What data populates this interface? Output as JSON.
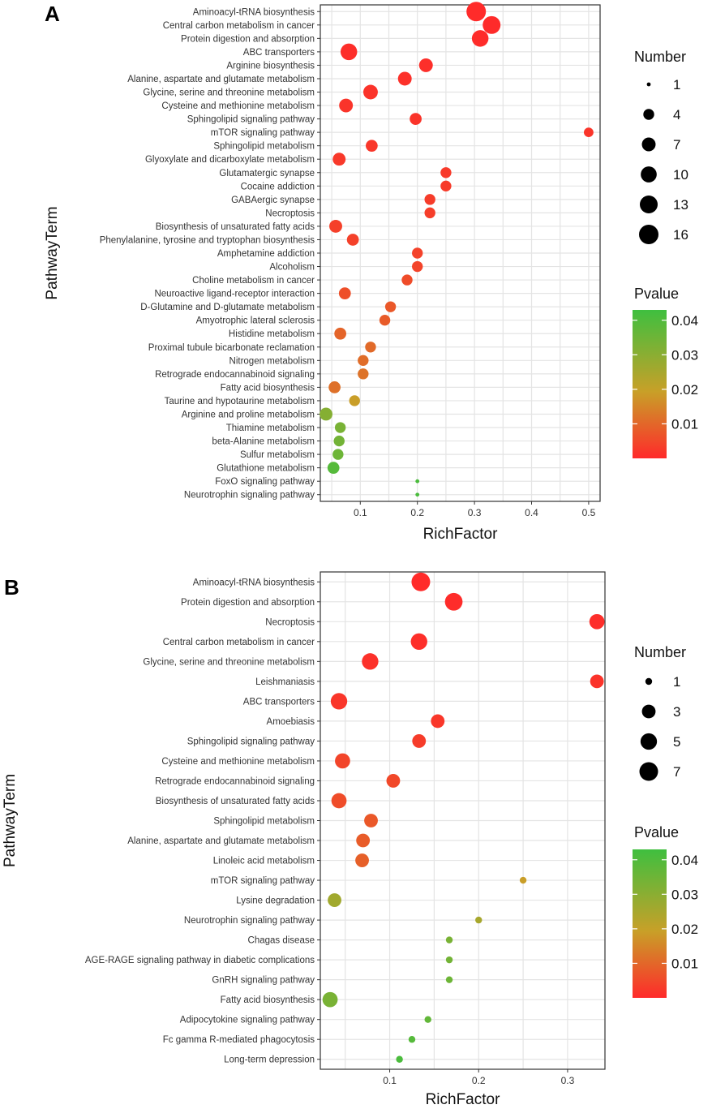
{
  "colors": {
    "low": "#ff2a2a",
    "mid": "#c8a028",
    "high": "#3fbf3f",
    "grid": "#e4e4e4",
    "panel_border": "#333333"
  },
  "chart_data": [
    {
      "type": "scatter",
      "panel": "A",
      "xlabel": "RichFactor",
      "ylabel": "PathwayTerm",
      "xlim": [
        0.03,
        0.52
      ],
      "xticks": [
        0.1,
        0.2,
        0.3,
        0.4,
        0.5
      ],
      "xtick_labels": [
        "0.1",
        "0.2",
        "0.3",
        "0.4",
        "0.5"
      ],
      "size_legend": {
        "title": "Number",
        "values": [
          1,
          4,
          7,
          10,
          13,
          16
        ],
        "labels": [
          "1",
          "4",
          "7",
          "10",
          "13",
          "16"
        ]
      },
      "color_legend": {
        "title": "Pvalue",
        "min": 0.0,
        "max": 0.043,
        "ticks": [
          0.01,
          0.02,
          0.03,
          0.04
        ],
        "labels": [
          "0.01",
          "0.02",
          "0.03",
          "0.04"
        ]
      },
      "points": [
        {
          "term": "Aminoacyl-tRNA biosynthesis",
          "x": 0.303,
          "count": 16,
          "p": 0.0001
        },
        {
          "term": "Central carbon metabolism in cancer",
          "x": 0.33,
          "count": 13,
          "p": 0.0002
        },
        {
          "term": "Protein digestion and absorption",
          "x": 0.31,
          "count": 11,
          "p": 0.0004
        },
        {
          "term": "ABC transporters",
          "x": 0.08,
          "count": 11,
          "p": 0.0006
        },
        {
          "term": "Arginine biosynthesis",
          "x": 0.215,
          "count": 7,
          "p": 0.0008
        },
        {
          "term": "Alanine, aspartate and glutamate metabolism",
          "x": 0.178,
          "count": 7,
          "p": 0.0012
        },
        {
          "term": "Glycine, serine and threonine metabolism",
          "x": 0.118,
          "count": 8,
          "p": 0.0015
        },
        {
          "term": "Cysteine and methionine metabolism",
          "x": 0.075,
          "count": 7,
          "p": 0.0016
        },
        {
          "term": "Sphingolipid signaling pathway",
          "x": 0.197,
          "count": 5,
          "p": 0.0017
        },
        {
          "term": "mTOR signaling pathway",
          "x": 0.5,
          "count": 3,
          "p": 0.0018
        },
        {
          "term": "Sphingolipid metabolism",
          "x": 0.12,
          "count": 5,
          "p": 0.0022
        },
        {
          "term": "Glyoxylate and dicarboxylate metabolism",
          "x": 0.063,
          "count": 6,
          "p": 0.0025
        },
        {
          "term": "Glutamatergic synapse",
          "x": 0.25,
          "count": 4,
          "p": 0.0026
        },
        {
          "term": "Cocaine addiction",
          "x": 0.25,
          "count": 4,
          "p": 0.0028
        },
        {
          "term": "GABAergic synapse",
          "x": 0.222,
          "count": 4,
          "p": 0.003
        },
        {
          "term": "Necroptosis",
          "x": 0.222,
          "count": 4,
          "p": 0.0032
        },
        {
          "term": "Biosynthesis of unsaturated fatty acids",
          "x": 0.057,
          "count": 6,
          "p": 0.0036
        },
        {
          "term": "Phenylalanine, tyrosine and tryptophan biosynthesis",
          "x": 0.087,
          "count": 5,
          "p": 0.0038
        },
        {
          "term": "Amphetamine addiction",
          "x": 0.2,
          "count": 4,
          "p": 0.004
        },
        {
          "term": "Alcoholism",
          "x": 0.2,
          "count": 4,
          "p": 0.0042
        },
        {
          "term": "Choline metabolism in cancer",
          "x": 0.182,
          "count": 4,
          "p": 0.0055
        },
        {
          "term": "Neuroactive ligand-receptor interaction",
          "x": 0.073,
          "count": 5,
          "p": 0.006
        },
        {
          "term": "D-Glutamine and D-glutamate metabolism",
          "x": 0.153,
          "count": 4,
          "p": 0.0075
        },
        {
          "term": "Amyotrophic lateral sclerosis",
          "x": 0.143,
          "count": 4,
          "p": 0.008
        },
        {
          "term": "Histidine metabolism",
          "x": 0.065,
          "count": 5,
          "p": 0.0095
        },
        {
          "term": "Proximal tubule bicarbonate reclamation",
          "x": 0.118,
          "count": 4,
          "p": 0.0105
        },
        {
          "term": "Nitrogen metabolism",
          "x": 0.105,
          "count": 4,
          "p": 0.011
        },
        {
          "term": "Retrograde endocannabinoid signaling",
          "x": 0.105,
          "count": 4,
          "p": 0.012
        },
        {
          "term": "Fatty acid biosynthesis",
          "x": 0.055,
          "count": 5,
          "p": 0.0115
        },
        {
          "term": "Taurine and hypotaurine metabolism",
          "x": 0.09,
          "count": 4,
          "p": 0.019
        },
        {
          "term": "Arginine and proline metabolism",
          "x": 0.04,
          "count": 6,
          "p": 0.031
        },
        {
          "term": "Thiamine metabolism",
          "x": 0.065,
          "count": 4,
          "p": 0.033
        },
        {
          "term": "beta-Alanine metabolism",
          "x": 0.063,
          "count": 4,
          "p": 0.034
        },
        {
          "term": "Sulfur metabolism",
          "x": 0.061,
          "count": 4,
          "p": 0.035
        },
        {
          "term": "Glutathione metabolism",
          "x": 0.053,
          "count": 5,
          "p": 0.039
        },
        {
          "term": "FoxO signaling pathway",
          "x": 0.2,
          "count": 1,
          "p": 0.041
        },
        {
          "term": "Neurotrophin signaling pathway",
          "x": 0.2,
          "count": 1,
          "p": 0.041
        }
      ]
    },
    {
      "type": "scatter",
      "panel": "B",
      "xlabel": "RichFactor",
      "ylabel": "PathwayTerm",
      "xlim": [
        0.022,
        0.342
      ],
      "xticks": [
        0.1,
        0.2,
        0.3
      ],
      "xtick_labels": [
        "0.1",
        "0.2",
        "0.3"
      ],
      "size_legend": {
        "title": "Number",
        "values": [
          1,
          3,
          5,
          7
        ],
        "labels": [
          "1",
          "3",
          "5",
          "7"
        ]
      },
      "color_legend": {
        "title": "Pvalue",
        "min": 0.0,
        "max": 0.043,
        "ticks": [
          0.01,
          0.02,
          0.03,
          0.04
        ],
        "labels": [
          "0.01",
          "0.02",
          "0.03",
          "0.04"
        ]
      },
      "points": [
        {
          "term": "Aminoacyl-tRNA biosynthesis",
          "x": 0.135,
          "count": 7,
          "p": 0.0001
        },
        {
          "term": "Protein digestion and absorption",
          "x": 0.172,
          "count": 6,
          "p": 0.0003
        },
        {
          "term": "Necroptosis",
          "x": 0.333,
          "count": 4,
          "p": 0.0006
        },
        {
          "term": "Central carbon metabolism in cancer",
          "x": 0.133,
          "count": 5,
          "p": 0.0008
        },
        {
          "term": "Glycine, serine and threonine metabolism",
          "x": 0.078,
          "count": 5,
          "p": 0.0012
        },
        {
          "term": "Leishmaniasis",
          "x": 0.333,
          "count": 3,
          "p": 0.0015
        },
        {
          "term": "ABC transporters",
          "x": 0.043,
          "count": 5,
          "p": 0.002
        },
        {
          "term": "Amoebiasis",
          "x": 0.154,
          "count": 3,
          "p": 0.0022
        },
        {
          "term": "Sphingolipid signaling pathway",
          "x": 0.133,
          "count": 3,
          "p": 0.003
        },
        {
          "term": "Cysteine and methionine metabolism",
          "x": 0.047,
          "count": 4,
          "p": 0.0045
        },
        {
          "term": "Retrograde endocannabinoid signaling",
          "x": 0.104,
          "count": 3,
          "p": 0.005
        },
        {
          "term": "Biosynthesis of unsaturated fatty acids",
          "x": 0.043,
          "count": 4,
          "p": 0.0055
        },
        {
          "term": "Sphingolipid metabolism",
          "x": 0.079,
          "count": 3,
          "p": 0.0075
        },
        {
          "term": "Alanine, aspartate and glutamate metabolism",
          "x": 0.07,
          "count": 3,
          "p": 0.0082
        },
        {
          "term": "Linoleic acid metabolism",
          "x": 0.069,
          "count": 3,
          "p": 0.0088
        },
        {
          "term": "mTOR signaling pathway",
          "x": 0.25,
          "count": 1,
          "p": 0.019
        },
        {
          "term": "Lysine degradation",
          "x": 0.038,
          "count": 3,
          "p": 0.026
        },
        {
          "term": "Neurotrophin signaling pathway",
          "x": 0.2,
          "count": 1,
          "p": 0.025
        },
        {
          "term": "Chagas disease",
          "x": 0.167,
          "count": 1,
          "p": 0.033
        },
        {
          "term": "AGE-RAGE signaling pathway in diabetic complications",
          "x": 0.167,
          "count": 1,
          "p": 0.034
        },
        {
          "term": "GnRH signaling pathway",
          "x": 0.167,
          "count": 1,
          "p": 0.035
        },
        {
          "term": "Fatty acid biosynthesis",
          "x": 0.033,
          "count": 4,
          "p": 0.033
        },
        {
          "term": "Adipocytokine signaling pathway",
          "x": 0.143,
          "count": 1,
          "p": 0.037
        },
        {
          "term": "Fc gamma R-mediated phagocytosis",
          "x": 0.125,
          "count": 1,
          "p": 0.039
        },
        {
          "term": "Long-term depression",
          "x": 0.111,
          "count": 1,
          "p": 0.041
        }
      ]
    }
  ]
}
